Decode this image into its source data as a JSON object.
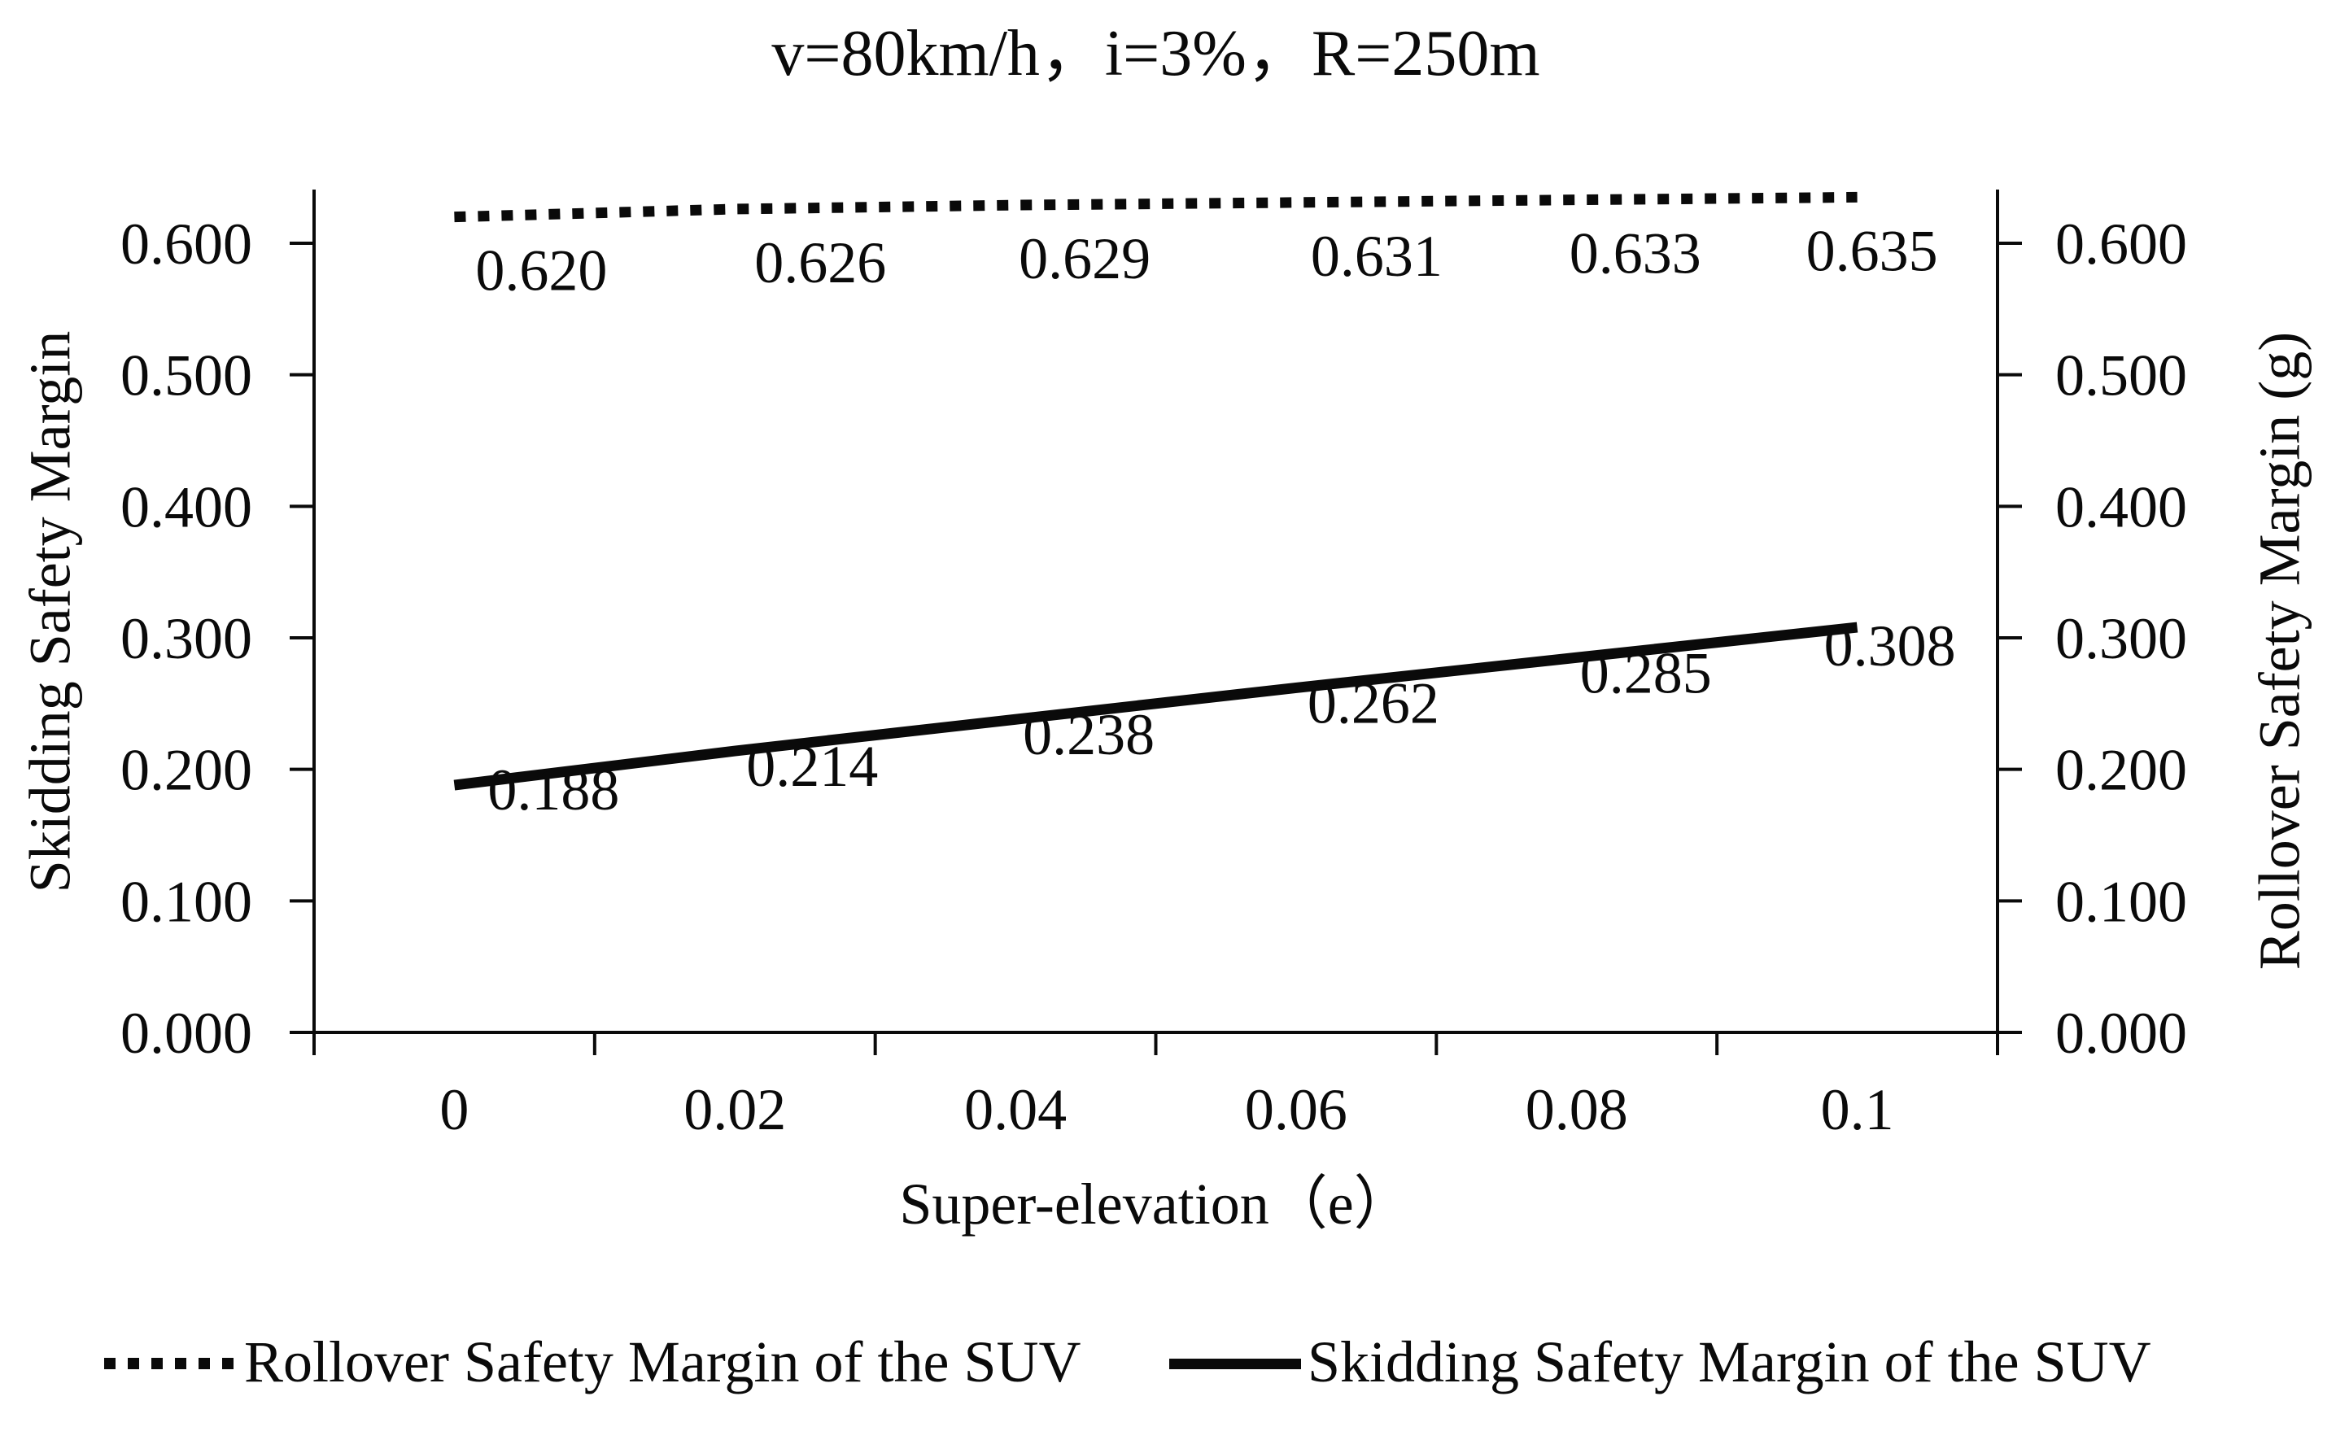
{
  "chart_data": {
    "type": "line",
    "title": "v=80km/h，i=3%，R=250m",
    "xlabel": "Super-elevation（e）",
    "categories": [
      "0",
      "0.02",
      "0.04",
      "0.06",
      "0.08",
      "0.1"
    ],
    "series": [
      {
        "name": "Rollover Safety Margin of the SUV",
        "line_style": "dotted",
        "values": [
          0.62,
          0.626,
          0.629,
          0.631,
          0.633,
          0.635
        ],
        "point_labels": [
          "0.620",
          "0.626",
          "0.629",
          "0.631",
          "0.633",
          "0.635"
        ]
      },
      {
        "name": "Skidding Safety Margin of the SUV",
        "line_style": "solid",
        "values": [
          0.188,
          0.214,
          0.238,
          0.262,
          0.285,
          0.308
        ],
        "point_labels": [
          "0.188",
          "0.214",
          "0.238",
          "0.262",
          "0.285",
          "0.308"
        ]
      }
    ],
    "left_axis": {
      "title": "Skidding Safety Margin",
      "min": 0.0,
      "max": 0.6,
      "tick_labels": [
        "0.000",
        "0.100",
        "0.200",
        "0.300",
        "0.400",
        "0.500",
        "0.600"
      ]
    },
    "right_axis": {
      "title": "Rollover Safety Margin (g)",
      "min": 0.0,
      "max": 0.6,
      "tick_labels": [
        "0.000",
        "0.100",
        "0.200",
        "0.300",
        "0.400",
        "0.500",
        "0.600"
      ]
    },
    "legend": {
      "position": "bottom",
      "items": [
        "Rollover Safety Margin of the SUV",
        "Skidding Safety Margin of the SUV"
      ]
    },
    "grid": false,
    "line_color": "#0a0a0a",
    "text_color": "#0a0a0a",
    "layout_hints": {
      "labels_below_line": true,
      "rollover_label_dx": [
        107,
        105,
        85,
        99,
        72,
        18
      ],
      "rollover_label_baseline_dy": 90,
      "skidding_label_dx": [
        122,
        95,
        90,
        95,
        85,
        40
      ],
      "skidding_label_baseline_dy": [
        30,
        43,
        43,
        43,
        43,
        47
      ]
    }
  }
}
